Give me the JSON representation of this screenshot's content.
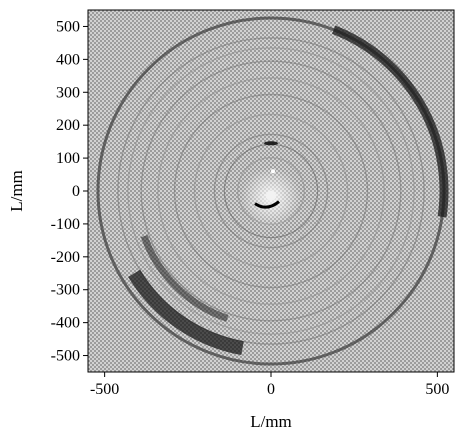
{
  "chart_data": {
    "type": "heatmap",
    "title": "",
    "xlabel": "L/mm",
    "ylabel": "L/mm",
    "xlim": [
      -550,
      550
    ],
    "ylim": [
      -550,
      550
    ],
    "x_ticks": [
      -500,
      0,
      500
    ],
    "y_ticks": [
      500,
      400,
      300,
      200,
      100,
      0,
      -100,
      -200,
      -300,
      -400,
      -500
    ],
    "grid": false,
    "legend": "none",
    "colormap": "grayscale",
    "background_color": "#bdbdbd",
    "features": [
      {
        "name": "outer-ring",
        "radius": 520,
        "center": [
          0,
          0
        ]
      },
      {
        "name": "left-dark-arc",
        "radius": 480,
        "center": [
          0,
          0
        ]
      },
      {
        "name": "center-artifact",
        "radius": 20,
        "center": [
          0,
          -20
        ]
      },
      {
        "name": "inner-ring",
        "radius": 140,
        "center": [
          0,
          0
        ]
      }
    ]
  }
}
